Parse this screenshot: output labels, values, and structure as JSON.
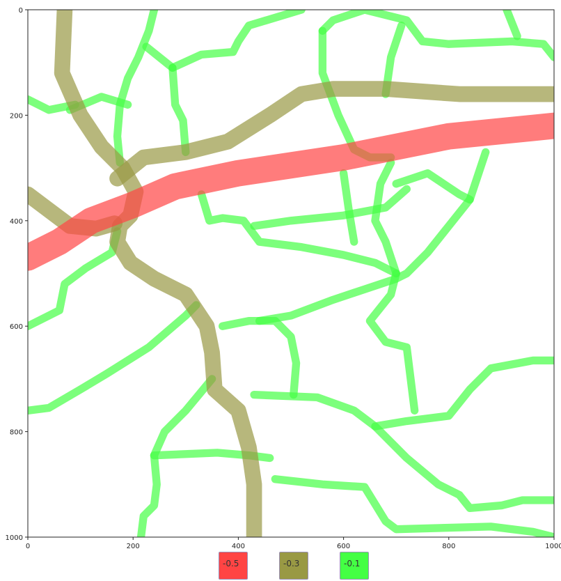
{
  "chart_data": {
    "type": "map",
    "xlim": [
      0,
      1000
    ],
    "ylim": [
      1000,
      0
    ],
    "x_ticks": [
      "0",
      "200",
      "400",
      "600",
      "800",
      "1000"
    ],
    "y_ticks": [
      "0",
      "200",
      "400",
      "600",
      "800",
      "1000"
    ],
    "legend": [
      {
        "label": "-0.5",
        "color": "#ff4444"
      },
      {
        "label": "-0.3",
        "color": "#999944"
      },
      {
        "label": "-0.1",
        "color": "#44ff44"
      }
    ],
    "roads": [
      {
        "level": "-0.5",
        "points": [
          [
            0,
            470
          ],
          [
            60,
            440
          ],
          [
            120,
            400
          ],
          [
            200,
            370
          ],
          [
            280,
            335
          ],
          [
            400,
            310
          ],
          [
            600,
            280
          ],
          [
            800,
            240
          ],
          [
            1000,
            220
          ]
        ]
      },
      {
        "level": "-0.3",
        "points": [
          [
            70,
            0
          ],
          [
            65,
            120
          ],
          [
            100,
            200
          ],
          [
            140,
            260
          ],
          [
            180,
            300
          ],
          [
            205,
            345
          ],
          [
            195,
            390
          ],
          [
            175,
            410
          ],
          [
            170,
            440
          ],
          [
            195,
            480
          ],
          [
            240,
            510
          ],
          [
            300,
            540
          ],
          [
            340,
            600
          ],
          [
            350,
            650
          ],
          [
            355,
            720
          ],
          [
            400,
            760
          ],
          [
            420,
            830
          ],
          [
            430,
            900
          ],
          [
            430,
            960
          ],
          [
            430,
            1000
          ]
        ]
      },
      {
        "level": "-0.3",
        "points": [
          [
            170,
            320
          ],
          [
            220,
            280
          ],
          [
            300,
            270
          ],
          [
            380,
            250
          ],
          [
            460,
            200
          ],
          [
            520,
            160
          ],
          [
            580,
            150
          ],
          [
            680,
            150
          ],
          [
            820,
            160
          ],
          [
            1000,
            160
          ]
        ]
      },
      {
        "level": "-0.3",
        "points": [
          [
            0,
            350
          ],
          [
            40,
            380
          ],
          [
            80,
            410
          ],
          [
            130,
            415
          ],
          [
            165,
            405
          ]
        ]
      },
      {
        "level": "-0.1",
        "points": [
          [
            0,
            170
          ],
          [
            40,
            190
          ],
          [
            90,
            180
          ]
        ]
      },
      {
        "level": "-0.1",
        "points": [
          [
            80,
            190
          ],
          [
            140,
            165
          ],
          [
            190,
            180
          ]
        ]
      },
      {
        "level": "-0.1",
        "points": [
          [
            240,
            0
          ],
          [
            230,
            40
          ],
          [
            210,
            90
          ],
          [
            190,
            130
          ],
          [
            175,
            180
          ],
          [
            170,
            240
          ],
          [
            175,
            290
          ]
        ]
      },
      {
        "level": "-0.1",
        "points": [
          [
            225,
            70
          ],
          [
            275,
            110
          ]
        ]
      },
      {
        "level": "-0.1",
        "points": [
          [
            275,
            110
          ],
          [
            280,
            180
          ],
          [
            295,
            210
          ],
          [
            300,
            270
          ]
        ]
      },
      {
        "level": "-0.1",
        "points": [
          [
            275,
            110
          ],
          [
            330,
            85
          ],
          [
            390,
            80
          ],
          [
            400,
            60
          ],
          [
            420,
            30
          ],
          [
            520,
            0
          ]
        ]
      },
      {
        "level": "-0.1",
        "points": [
          [
            560,
            40
          ],
          [
            580,
            20
          ],
          [
            640,
            0
          ],
          [
            720,
            20
          ],
          [
            750,
            60
          ],
          [
            800,
            65
          ],
          [
            920,
            60
          ],
          [
            980,
            65
          ],
          [
            1000,
            90
          ]
        ]
      },
      {
        "level": "-0.1",
        "points": [
          [
            910,
            0
          ],
          [
            930,
            50
          ]
        ]
      },
      {
        "level": "-0.1",
        "points": [
          [
            710,
            30
          ],
          [
            690,
            90
          ],
          [
            680,
            160
          ]
        ]
      },
      {
        "level": "-0.1",
        "points": [
          [
            560,
            40
          ],
          [
            560,
            120
          ],
          [
            590,
            200
          ],
          [
            620,
            265
          ],
          [
            650,
            280
          ],
          [
            690,
            280
          ]
        ]
      },
      {
        "level": "-0.1",
        "points": [
          [
            600,
            310
          ],
          [
            610,
            380
          ],
          [
            620,
            440
          ]
        ]
      },
      {
        "level": "-0.1",
        "points": [
          [
            690,
            290
          ],
          [
            670,
            330
          ],
          [
            660,
            400
          ],
          [
            680,
            440
          ],
          [
            700,
            500
          ]
        ]
      },
      {
        "level": "-0.1",
        "points": [
          [
            700,
            330
          ],
          [
            760,
            310
          ],
          [
            790,
            330
          ],
          [
            820,
            350
          ],
          [
            840,
            360
          ]
        ]
      },
      {
        "level": "-0.1",
        "points": [
          [
            870,
            270
          ],
          [
            840,
            360
          ],
          [
            800,
            410
          ],
          [
            760,
            460
          ],
          [
            720,
            500
          ],
          [
            700,
            510
          ],
          [
            640,
            530
          ],
          [
            580,
            550
          ],
          [
            500,
            580
          ],
          [
            440,
            590
          ]
        ]
      },
      {
        "level": "-0.1",
        "points": [
          [
            330,
            350
          ],
          [
            345,
            400
          ],
          [
            370,
            395
          ],
          [
            410,
            400
          ],
          [
            440,
            440
          ],
          [
            520,
            450
          ],
          [
            600,
            465
          ],
          [
            660,
            480
          ],
          [
            700,
            500
          ]
        ]
      },
      {
        "level": "-0.1",
        "points": [
          [
            430,
            410
          ],
          [
            500,
            400
          ],
          [
            600,
            390
          ],
          [
            680,
            375
          ],
          [
            720,
            340
          ]
        ]
      },
      {
        "level": "-0.1",
        "points": [
          [
            0,
            600
          ],
          [
            60,
            570
          ],
          [
            70,
            520
          ],
          [
            110,
            490
          ],
          [
            160,
            460
          ],
          [
            170,
            420
          ]
        ]
      },
      {
        "level": "-0.1",
        "points": [
          [
            0,
            760
          ],
          [
            40,
            755
          ],
          [
            100,
            720
          ],
          [
            150,
            690
          ],
          [
            230,
            640
          ],
          [
            300,
            580
          ],
          [
            320,
            560
          ]
        ]
      },
      {
        "level": "-0.1",
        "points": [
          [
            370,
            600
          ],
          [
            420,
            590
          ],
          [
            470,
            590
          ],
          [
            500,
            620
          ],
          [
            510,
            670
          ],
          [
            505,
            730
          ]
        ]
      },
      {
        "level": "-0.1",
        "points": [
          [
            700,
            500
          ],
          [
            690,
            540
          ],
          [
            650,
            590
          ],
          [
            680,
            630
          ],
          [
            720,
            640
          ],
          [
            735,
            760
          ]
        ]
      },
      {
        "level": "-0.1",
        "points": [
          [
            430,
            730
          ],
          [
            550,
            735
          ],
          [
            620,
            760
          ],
          [
            660,
            790
          ],
          [
            720,
            780
          ],
          [
            800,
            770
          ],
          [
            840,
            720
          ],
          [
            880,
            680
          ],
          [
            960,
            665
          ],
          [
            1000,
            665
          ]
        ]
      },
      {
        "level": "-0.1",
        "points": [
          [
            660,
            790
          ],
          [
            720,
            850
          ],
          [
            780,
            900
          ],
          [
            820,
            920
          ],
          [
            840,
            945
          ],
          [
            900,
            940
          ],
          [
            940,
            930
          ],
          [
            1000,
            930
          ]
        ]
      },
      {
        "level": "-0.1",
        "points": [
          [
            350,
            700
          ],
          [
            300,
            760
          ],
          [
            260,
            800
          ],
          [
            240,
            845
          ],
          [
            245,
            900
          ],
          [
            240,
            940
          ],
          [
            220,
            960
          ],
          [
            215,
            1000
          ]
        ]
      },
      {
        "level": "-0.1",
        "points": [
          [
            240,
            845
          ],
          [
            360,
            840
          ],
          [
            420,
            845
          ],
          [
            460,
            850
          ]
        ]
      },
      {
        "level": "-0.1",
        "points": [
          [
            470,
            890
          ],
          [
            560,
            900
          ],
          [
            640,
            905
          ],
          [
            680,
            970
          ],
          [
            700,
            985
          ],
          [
            880,
            980
          ],
          [
            960,
            990
          ],
          [
            1000,
            1000
          ]
        ]
      }
    ]
  }
}
